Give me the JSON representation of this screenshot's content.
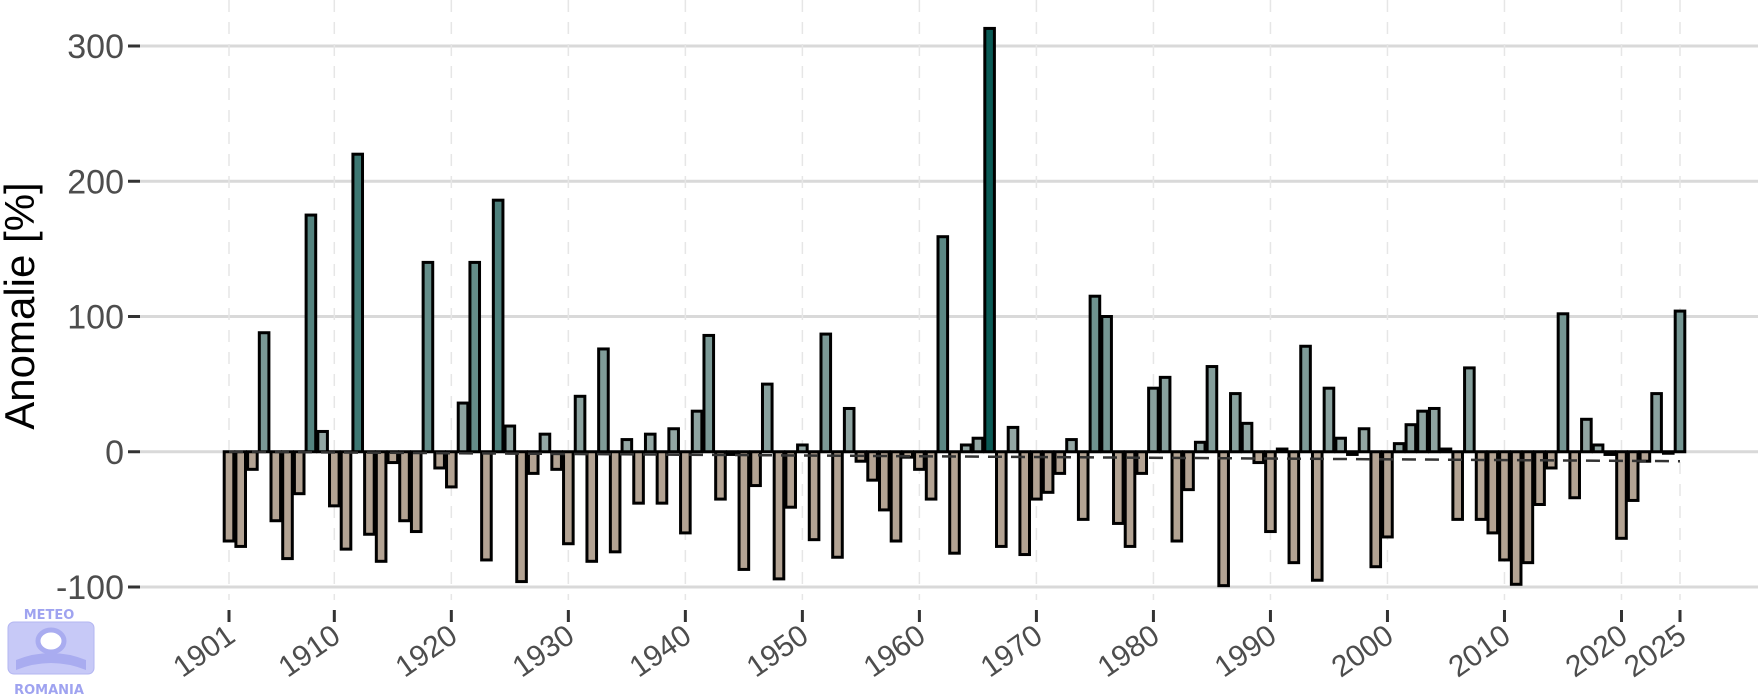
{
  "chart_data": {
    "type": "bar",
    "ylabel": "Anomalie [%]",
    "xlabel": "",
    "title": "",
    "ylim": [
      -100,
      300
    ],
    "yticks": [
      -100,
      0,
      100,
      200,
      300
    ],
    "xticks": [
      1901,
      1910,
      1920,
      1930,
      1940,
      1950,
      1960,
      1970,
      1980,
      1990,
      2000,
      2010,
      2020,
      2025
    ],
    "grid": true,
    "legend": "none",
    "trend": {
      "style": "dashed",
      "from": [
        1901,
        0
      ],
      "to": [
        2025,
        -7
      ]
    },
    "colors": {
      "positive_low": "#95a8a5",
      "positive_high": "#0a5a55",
      "negative": "#b3a393",
      "bar_outline": "#000000",
      "gridline": "#d9d9d9",
      "trend": "#333333"
    },
    "x": [
      1901,
      1902,
      1903,
      1904,
      1905,
      1906,
      1907,
      1908,
      1909,
      1910,
      1911,
      1912,
      1913,
      1914,
      1915,
      1916,
      1917,
      1918,
      1919,
      1920,
      1921,
      1922,
      1923,
      1924,
      1925,
      1926,
      1927,
      1928,
      1929,
      1930,
      1931,
      1932,
      1933,
      1934,
      1935,
      1936,
      1937,
      1938,
      1939,
      1940,
      1941,
      1942,
      1943,
      1944,
      1945,
      1946,
      1947,
      1948,
      1949,
      1950,
      1951,
      1952,
      1953,
      1954,
      1955,
      1956,
      1957,
      1958,
      1959,
      1960,
      1961,
      1962,
      1963,
      1964,
      1965,
      1966,
      1967,
      1968,
      1969,
      1970,
      1971,
      1972,
      1973,
      1974,
      1975,
      1976,
      1977,
      1978,
      1979,
      1980,
      1981,
      1982,
      1983,
      1984,
      1985,
      1986,
      1987,
      1988,
      1989,
      1990,
      1991,
      1992,
      1993,
      1994,
      1995,
      1996,
      1997,
      1998,
      1999,
      2000,
      2001,
      2002,
      2003,
      2004,
      2005,
      2006,
      2007,
      2008,
      2009,
      2010,
      2011,
      2012,
      2013,
      2014,
      2015,
      2016,
      2017,
      2018,
      2019,
      2020,
      2021,
      2022,
      2023,
      2024,
      2025
    ],
    "values": [
      -66,
      -70,
      -13,
      88,
      -51,
      -79,
      -31,
      175,
      15,
      -40,
      -72,
      220,
      -61,
      -81,
      -8,
      -51,
      -59,
      140,
      -12,
      -26,
      36,
      140,
      -80,
      186,
      19,
      -96,
      -16,
      13,
      -13,
      -68,
      41,
      -81,
      76,
      -74,
      9,
      -38,
      13,
      -38,
      17,
      -60,
      30,
      86,
      -35,
      -2,
      -87,
      -25,
      50,
      -94,
      -41,
      5,
      -65,
      87,
      -78,
      32,
      -7,
      -21,
      -43,
      -66,
      -4,
      -13,
      -35,
      159,
      -75,
      5,
      10,
      313,
      -70,
      18,
      -76,
      -35,
      -30,
      -16,
      9,
      -50,
      115,
      100,
      -53,
      -70,
      -16,
      47,
      55,
      -66,
      -28,
      7,
      63,
      -99,
      43,
      21,
      -8,
      -59,
      2,
      -82,
      78,
      -95,
      47,
      10,
      -2,
      17,
      -85,
      -63,
      6,
      20,
      30,
      32,
      2,
      -50,
      62,
      -50,
      -60,
      -80,
      -98,
      -82,
      -39,
      -12,
      102,
      -34,
      24,
      5,
      -2,
      -64,
      -36,
      -7,
      43,
      0,
      104
    ]
  },
  "logo": {
    "top_text": "METEO",
    "bottom_text": "ROMANIA"
  }
}
